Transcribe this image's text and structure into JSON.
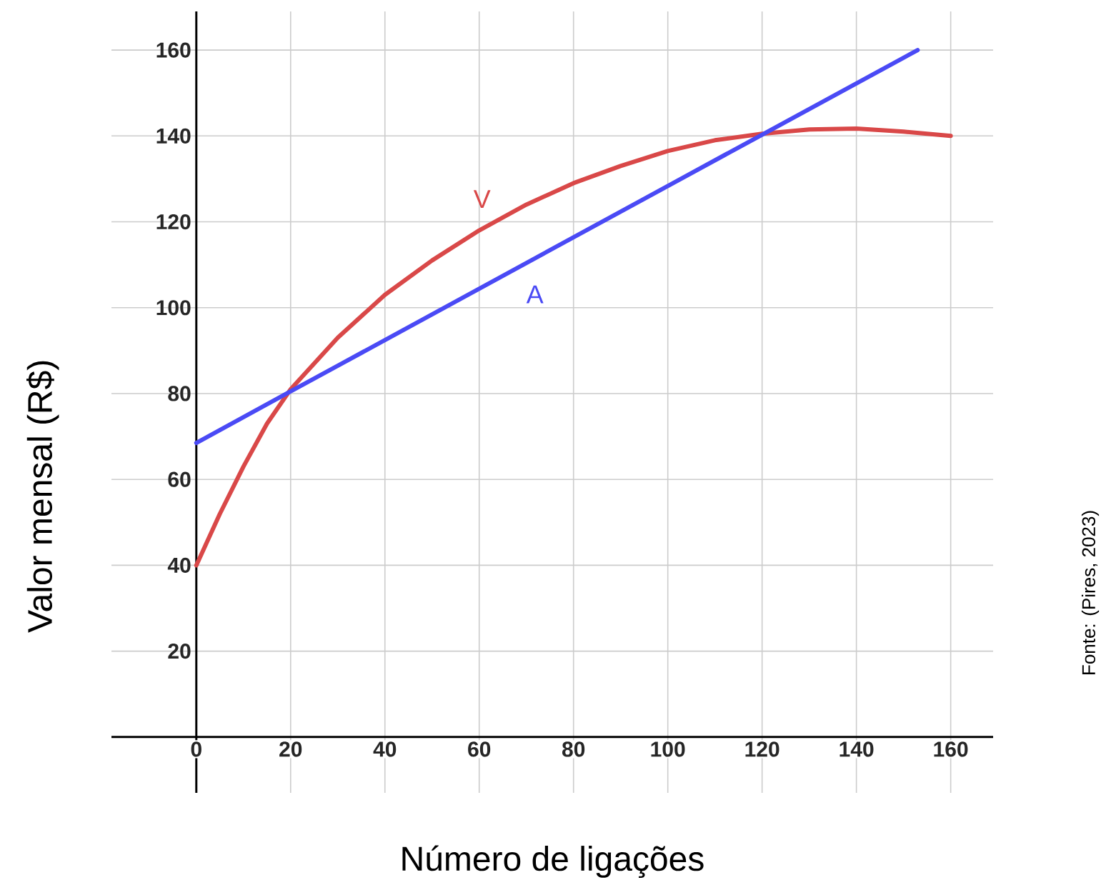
{
  "chart_data": {
    "type": "line",
    "xlabel": "Número de ligações",
    "ylabel": "Valor mensal (R$)",
    "annotations": [
      "Fonte: (Pires, 2023)"
    ],
    "xlim": [
      -18,
      169
    ],
    "ylim": [
      -13,
      169
    ],
    "xticks": [
      0,
      20,
      40,
      60,
      80,
      100,
      120,
      140,
      160
    ],
    "yticks": [
      20,
      40,
      60,
      80,
      100,
      120,
      140,
      160
    ],
    "grid": true,
    "legend": false,
    "series": [
      {
        "name": "V",
        "color": "#d94848",
        "x": [
          0,
          5,
          10,
          15,
          20,
          30,
          40,
          50,
          60,
          70,
          80,
          90,
          100,
          110,
          120,
          130,
          140,
          150,
          160
        ],
        "values": [
          40,
          52,
          63,
          73,
          81,
          93,
          103,
          111,
          118,
          124,
          129,
          133,
          136.5,
          139,
          140.5,
          141.5,
          141.7,
          141,
          140
        ]
      },
      {
        "name": "A",
        "color": "#4a4af5",
        "x": [
          0,
          20,
          120,
          153
        ],
        "values": [
          68.5,
          80.5,
          140.3,
          160
        ]
      }
    ]
  }
}
